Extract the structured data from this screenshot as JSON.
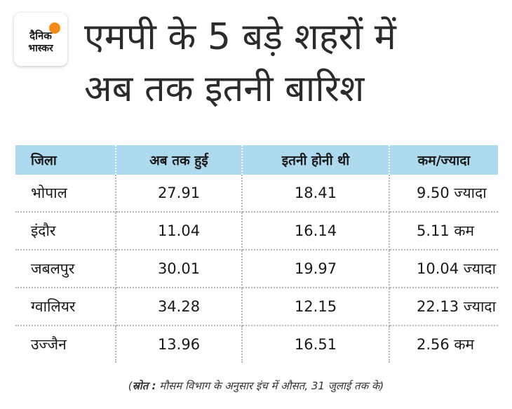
{
  "logo": {
    "line1": "दैनिक",
    "line2": "भास्कर"
  },
  "title": {
    "line1": "एमपी के 5 बड़े शहरों में",
    "line2": "अब तक इतनी बारिश"
  },
  "table": {
    "headers": [
      "जिला",
      "अब तक हुई",
      "इतनी होनी थी",
      "कम/ज्यादा"
    ],
    "rows": [
      [
        "भोपाल",
        "27.91",
        "18.41",
        "9.50 ज्यादा"
      ],
      [
        "इंदौर",
        "11.04",
        "16.14",
        "5.11 कम"
      ],
      [
        "जबलपुर",
        "30.01",
        "19.97",
        "10.04 ज्यादा"
      ],
      [
        "ग्वालियर",
        "34.28",
        "12.15",
        "22.13 ज्यादा"
      ],
      [
        "उज्जैन",
        "13.96",
        "16.51",
        "2.56 कम"
      ]
    ]
  },
  "source": {
    "open": "(",
    "label": "स्रोत :",
    "text": " मौसम विभाग के अनुसार इंच में औसत, 31 जुलाई तक के)"
  },
  "colors": {
    "header_bg": "#aedaf0",
    "logo_accent": "#f28a1a"
  }
}
